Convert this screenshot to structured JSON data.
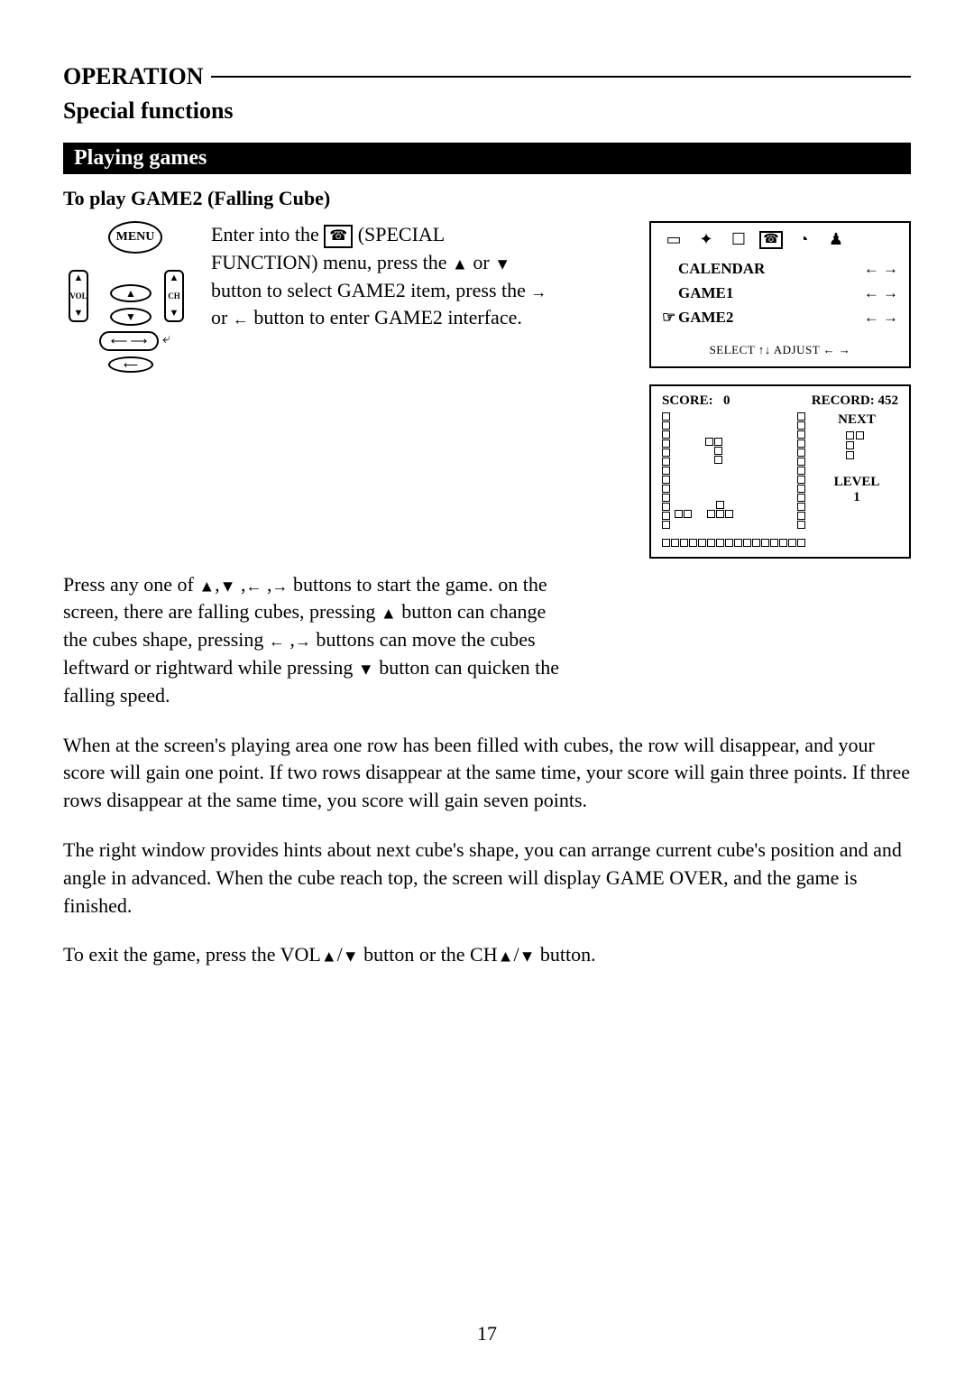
{
  "header": {
    "title": "OPERATION",
    "subtitle": "Special functions"
  },
  "bar": {
    "label": "Playing games"
  },
  "section": {
    "heading": "To  play GAME2 (Falling Cube)"
  },
  "remote": {
    "menu": "MENU",
    "vol_up": "▲",
    "vol_label": "VOL",
    "vol_down": "▼",
    "ch_up": "▲",
    "ch_label": "CH",
    "ch_down": "▼",
    "oval_up": "▲",
    "oval_down": "▼",
    "oval_arrow": "⟵  ⟶",
    "oval_last": "⟵",
    "enter_sym": "⤶"
  },
  "instr1": {
    "t1": "Enter into the ",
    "icon": "☎",
    "t2": " (SPECIAL FUNCTION) menu, press the ",
    "up": "▲",
    "t3": " or ",
    "down": "▼",
    "t4": " button to select GAME2 item, press the ",
    "right": "→",
    "t5": " or ",
    "left": "←",
    "t6": " button to enter GAME2 interface."
  },
  "menu_panel": {
    "icons": [
      "▭",
      "✦",
      "☐",
      "☎",
      "◔",
      "♟"
    ],
    "items": [
      {
        "label": "CALENDAR",
        "arrows": "← →",
        "selected": false
      },
      {
        "label": "GAME1",
        "arrows": "← →",
        "selected": false
      },
      {
        "label": "GAME2",
        "arrows": "← →",
        "selected": true
      }
    ],
    "footer_select": "SELECT ↑↓  ADJUST  ← →"
  },
  "game_panel": {
    "score_label": "SCORE:",
    "score_value": "0",
    "record_label": "RECORD:",
    "record_value": "452",
    "next_label": "NEXT",
    "level_label": "LEVEL",
    "level_value": "1",
    "wall_v_blocks": 13,
    "wall_h_blocks": 16
  },
  "para1": {
    "t1": "Press any one of ",
    "s_up": "▲",
    "c1": ",",
    "s_down": "▼",
    "c2": " ,",
    "s_left": "←",
    "c3": " ,",
    "s_right": "→",
    "t2": "  buttons to start the game. on the screen, there are falling cubes, pressing ",
    "s_up2": "▲",
    "t3": " button can change the cubes shape, pressing ",
    "s_left2": "←",
    "c4": " ,",
    "s_right2": "→",
    "t4": " buttons can move the cubes leftward or rightward while pressing ",
    "s_down2": "▼",
    "t5": " button can quicken the falling speed."
  },
  "para2": "When at the screen's playing area one row has been filled with cubes, the row will disappear, and your score will gain one point. If two rows disappear at the same time, your score will gain three points. If three rows disappear at the same time, you score will gain seven points.",
  "para3": "The right window provides hints about next cube's shape, you can arrange current cube's position and and angle in advanced. When the cube reach top, the screen will display GAME OVER, and the game is finished.",
  "para4": {
    "t1": "To exit the game, press the VOL",
    "up": "▲",
    "slash1": "/",
    "down": "▼",
    "t2": " button or the CH",
    "up2": "▲",
    "slash2": "/",
    "down2": "▼",
    "t3": " button."
  },
  "page": {
    "number": "17"
  }
}
